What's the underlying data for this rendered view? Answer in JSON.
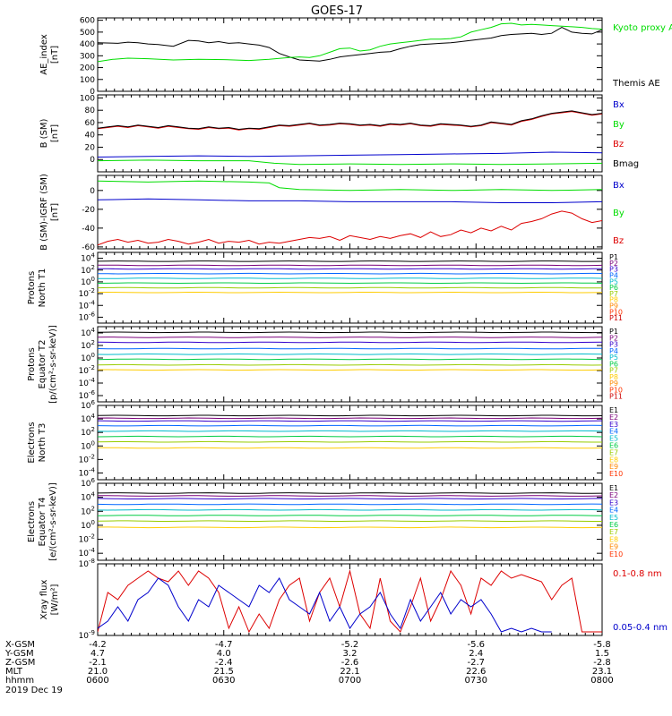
{
  "title": "GOES-17",
  "date_label": "2019 Dec 19",
  "colors": {
    "black": "#000000",
    "green": "#00dd00",
    "red": "#dd0000",
    "blue": "#0000cc",
    "channels": [
      "#000000",
      "#7a007a",
      "#3300cc",
      "#0066ff",
      "#00bbcc",
      "#00cc44",
      "#99cc00",
      "#ffcc00",
      "#ff8800",
      "#ff3300",
      "#cc0000"
    ]
  },
  "chart_data": [
    {
      "type": "line",
      "ylabel": "AE_index [nT]",
      "yticks": [
        "0",
        "100",
        "200",
        "300",
        "400",
        "500",
        "600"
      ],
      "ylim": [
        0,
        620
      ],
      "legend": [
        {
          "label": "Kyoto proxy AE",
          "color": "#00dd00"
        },
        {
          "label": "Themis AE",
          "color": "#000000"
        }
      ],
      "series": [
        {
          "name": "Themis AE",
          "color": "#000000",
          "x": [
            0,
            4,
            6,
            8,
            10,
            12,
            15,
            18,
            20,
            22,
            24,
            26,
            28,
            30,
            32,
            34,
            36,
            38,
            40,
            42,
            44,
            46,
            48,
            50,
            52,
            54,
            56,
            58,
            60,
            62,
            64,
            66,
            68,
            70,
            72,
            74,
            76,
            78,
            80,
            82,
            84,
            86,
            88,
            90,
            92,
            94,
            96,
            98,
            100
          ],
          "y": [
            410,
            405,
            415,
            410,
            400,
            395,
            380,
            430,
            425,
            410,
            420,
            405,
            410,
            400,
            390,
            370,
            320,
            290,
            265,
            260,
            255,
            270,
            290,
            300,
            310,
            320,
            330,
            335,
            360,
            380,
            395,
            400,
            405,
            410,
            420,
            430,
            440,
            450,
            470,
            480,
            485,
            490,
            480,
            490,
            540,
            500,
            490,
            485,
            520
          ]
        },
        {
          "name": "Kyoto proxy AE",
          "color": "#00dd00",
          "x": [
            0,
            3,
            6,
            10,
            15,
            20,
            25,
            30,
            34,
            38,
            40,
            42,
            44,
            46,
            48,
            50,
            52,
            54,
            56,
            58,
            60,
            62,
            64,
            66,
            68,
            70,
            72,
            74,
            76,
            78,
            80,
            82,
            84,
            86,
            88,
            90,
            92,
            94,
            96,
            98,
            100
          ],
          "y": [
            250,
            270,
            280,
            275,
            265,
            270,
            268,
            260,
            270,
            285,
            290,
            285,
            300,
            330,
            360,
            365,
            340,
            350,
            380,
            400,
            410,
            420,
            430,
            440,
            440,
            445,
            460,
            500,
            520,
            540,
            570,
            575,
            560,
            565,
            560,
            555,
            550,
            545,
            540,
            530,
            525
          ]
        }
      ]
    },
    {
      "type": "line",
      "ylabel": "B (SM) [nT]",
      "yticks": [
        "0",
        "20",
        "40",
        "60",
        "80",
        "100"
      ],
      "ylim": [
        -20,
        105
      ],
      "legend": [
        {
          "label": "Bx",
          "color": "#0000cc"
        },
        {
          "label": "By",
          "color": "#00dd00"
        },
        {
          "label": "Bz",
          "color": "#dd0000"
        },
        {
          "label": "Bmag",
          "color": "#000000"
        }
      ],
      "series": [
        {
          "name": "Bz",
          "color": "#dd0000",
          "x": [
            0,
            2,
            4,
            6,
            8,
            10,
            12,
            14,
            16,
            18,
            20,
            22,
            24,
            26,
            28,
            30,
            32,
            34,
            36,
            38,
            40,
            42,
            44,
            46,
            48,
            50,
            52,
            54,
            56,
            58,
            60,
            62,
            64,
            66,
            68,
            70,
            72,
            74,
            76,
            78,
            80,
            82,
            84,
            86,
            88,
            90,
            92,
            94,
            96,
            98,
            100
          ],
          "y": [
            50,
            52,
            54,
            52,
            55,
            53,
            51,
            54,
            52,
            50,
            49,
            52,
            50,
            51,
            48,
            50,
            49,
            52,
            55,
            54,
            56,
            58,
            55,
            56,
            58,
            57,
            55,
            56,
            54,
            57,
            56,
            58,
            55,
            54,
            57,
            56,
            55,
            53,
            55,
            60,
            58,
            56,
            62,
            65,
            70,
            74,
            76,
            78,
            75,
            72,
            74
          ]
        },
        {
          "name": "Bmag",
          "color": "#000000",
          "x": [
            0,
            2,
            4,
            6,
            8,
            10,
            12,
            14,
            16,
            18,
            20,
            22,
            24,
            26,
            28,
            30,
            32,
            34,
            36,
            38,
            40,
            42,
            44,
            46,
            48,
            50,
            52,
            54,
            56,
            58,
            60,
            62,
            64,
            66,
            68,
            70,
            72,
            74,
            76,
            78,
            80,
            82,
            84,
            86,
            88,
            90,
            92,
            94,
            96,
            98,
            100
          ],
          "y": [
            51,
            53,
            55,
            53,
            56,
            54,
            52,
            55,
            53,
            51,
            50,
            53,
            51,
            52,
            49,
            51,
            50,
            53,
            56,
            55,
            57,
            59,
            56,
            57,
            59,
            58,
            56,
            57,
            55,
            58,
            57,
            59,
            56,
            55,
            58,
            57,
            56,
            54,
            56,
            61,
            59,
            57,
            63,
            66,
            71,
            75,
            77,
            79,
            76,
            73,
            75
          ]
        },
        {
          "name": "Bx",
          "color": "#0000cc",
          "x": [
            0,
            10,
            20,
            30,
            40,
            50,
            60,
            70,
            80,
            90,
            100
          ],
          "y": [
            4,
            5,
            6,
            5,
            6,
            7,
            8,
            9,
            10,
            12,
            11
          ]
        },
        {
          "name": "By",
          "color": "#00dd00",
          "x": [
            0,
            10,
            20,
            30,
            35,
            40,
            50,
            60,
            70,
            80,
            90,
            100
          ],
          "y": [
            -2,
            -1,
            -2,
            -2,
            -6,
            -8,
            -7,
            -8,
            -7,
            -8,
            -7,
            -6
          ]
        }
      ]
    },
    {
      "type": "line",
      "ylabel": "B (SM)-IGRF (SM) [nT]",
      "yticks": [
        "-60",
        "-40",
        "-20",
        "0"
      ],
      "ylim": [
        -62,
        16
      ],
      "legend": [
        {
          "label": "Bx",
          "color": "#0000cc"
        },
        {
          "label": "By",
          "color": "#00dd00"
        },
        {
          "label": "Bz",
          "color": "#dd0000"
        }
      ],
      "series": [
        {
          "name": "By",
          "color": "#00dd00",
          "x": [
            0,
            10,
            20,
            30,
            34,
            36,
            40,
            50,
            60,
            70,
            80,
            90,
            100
          ],
          "y": [
            10,
            9,
            10,
            9,
            8,
            3,
            1,
            0,
            1,
            0,
            1,
            0,
            1
          ]
        },
        {
          "name": "Bx",
          "color": "#0000cc",
          "x": [
            0,
            10,
            20,
            30,
            40,
            50,
            60,
            70,
            80,
            90,
            100
          ],
          "y": [
            -10,
            -9,
            -10,
            -11,
            -11,
            -12,
            -12,
            -12,
            -13,
            -13,
            -12
          ]
        },
        {
          "name": "Bz",
          "color": "#dd0000",
          "x": [
            0,
            2,
            4,
            6,
            8,
            10,
            12,
            14,
            16,
            18,
            20,
            22,
            24,
            26,
            28,
            30,
            32,
            34,
            36,
            38,
            40,
            42,
            44,
            46,
            48,
            50,
            52,
            54,
            56,
            58,
            60,
            62,
            64,
            66,
            68,
            70,
            72,
            74,
            76,
            78,
            80,
            82,
            84,
            86,
            88,
            90,
            92,
            94,
            96,
            98,
            100
          ],
          "y": [
            -58,
            -54,
            -52,
            -55,
            -53,
            -56,
            -55,
            -52,
            -54,
            -57,
            -55,
            -52,
            -56,
            -54,
            -55,
            -53,
            -57,
            -55,
            -56,
            -54,
            -52,
            -50,
            -51,
            -49,
            -53,
            -48,
            -50,
            -52,
            -49,
            -51,
            -48,
            -46,
            -50,
            -44,
            -49,
            -47,
            -42,
            -45,
            -40,
            -43,
            -38,
            -42,
            -35,
            -33,
            -30,
            -25,
            -22,
            -24,
            -30,
            -34,
            -32
          ]
        }
      ]
    },
    {
      "type": "line",
      "ylabel": "Protons North T1",
      "yscale": "log",
      "yticks": [
        "10^-6",
        "10^-4",
        "10^-2",
        "10^0",
        "10^2",
        "10^4"
      ],
      "ylim_exp": [
        -7,
        5
      ],
      "legend": [
        "P1",
        "P2",
        "P3",
        "P4",
        "P5",
        "P6",
        "P7",
        "P8",
        "P9",
        "P10",
        "P11"
      ],
      "levels_exp": [
        3.5,
        2.8,
        2.2,
        1.4,
        0.6,
        -0.2,
        -1.0,
        -1.8
      ]
    },
    {
      "type": "line",
      "ylabel": "Protons Equator T2 [p/(cm²-s-sr-keV)]",
      "yscale": "log",
      "yticks": [
        "10^-6",
        "10^-4",
        "10^-2",
        "10^0",
        "10^2",
        "10^4"
      ],
      "ylim_exp": [
        -7,
        5
      ],
      "legend": [
        "P1",
        "P2",
        "P3",
        "P4",
        "P5",
        "P6",
        "P7",
        "P8",
        "P9",
        "P10",
        "P11"
      ],
      "levels_exp": [
        4.1,
        3.3,
        2.5,
        1.5,
        0.6,
        -0.2,
        -1.1,
        -1.9
      ]
    },
    {
      "type": "line",
      "ylabel": "Electrons North T3",
      "yscale": "log",
      "yticks": [
        "10^-4",
        "10^-2",
        "10^0",
        "10^2",
        "10^4",
        "10^6"
      ],
      "ylim_exp": [
        -5,
        6
      ],
      "legend": [
        "E1",
        "E2",
        "E3",
        "E4",
        "E5",
        "E6",
        "E7",
        "E8",
        "E9",
        "E10"
      ],
      "levels_exp": [
        4.5,
        4.1,
        3.7,
        3.0,
        2.2,
        1.4,
        0.6,
        -0.3
      ]
    },
    {
      "type": "line",
      "ylabel": "Electrons Equator T4 [e/(cm²-s-sr-keV)]",
      "yscale": "log",
      "yticks": [
        "10^-4",
        "10^-2",
        "10^0",
        "10^2",
        "10^4",
        "10^6"
      ],
      "ylim_exp": [
        -5,
        6
      ],
      "legend": [
        "E1",
        "E2",
        "E3",
        "E4",
        "E5",
        "E6",
        "E7",
        "E8",
        "E9",
        "E10"
      ],
      "levels_exp": [
        4.6,
        4.2,
        3.8,
        3.0,
        2.2,
        1.4,
        0.6,
        -0.3
      ]
    },
    {
      "type": "line",
      "ylabel": "Xray flux [W/m²]",
      "yscale": "log",
      "yticks": [
        "10^-9",
        "10^-8"
      ],
      "ylim_exp": [
        -9,
        -8
      ],
      "legend": [
        {
          "label": "0.1-0.8 nm",
          "color": "#dd0000"
        },
        {
          "label": "0.05-0.4 nm",
          "color": "#0000cc"
        }
      ],
      "series": [
        {
          "name": "0.1-0.8 nm",
          "color": "#dd0000",
          "x": [
            0,
            2,
            4,
            6,
            8,
            10,
            12,
            14,
            16,
            18,
            20,
            22,
            24,
            26,
            28,
            30,
            32,
            34,
            36,
            38,
            40,
            42,
            44,
            46,
            48,
            50,
            52,
            54,
            56,
            58,
            60,
            62,
            64,
            66,
            68,
            70,
            72,
            74,
            76,
            78,
            80,
            82,
            84,
            86,
            88,
            90,
            92,
            94,
            96,
            98,
            100
          ],
          "y": [
            -8.95,
            -8.4,
            -8.5,
            -8.3,
            -8.2,
            -8.1,
            -8.2,
            -8.25,
            -8.1,
            -8.3,
            -8.1,
            -8.2,
            -8.4,
            -8.9,
            -8.6,
            -8.95,
            -8.7,
            -8.9,
            -8.5,
            -8.3,
            -8.2,
            -8.8,
            -8.4,
            -8.2,
            -8.6,
            -8.1,
            -8.7,
            -8.9,
            -8.2,
            -8.8,
            -8.95,
            -8.6,
            -8.2,
            -8.8,
            -8.5,
            -8.1,
            -8.3,
            -8.7,
            -8.2,
            -8.3,
            -8.1,
            -8.2,
            -8.15,
            -8.2,
            -8.25,
            -8.5,
            -8.3,
            -8.2,
            -8.95,
            -8.95,
            -8.95
          ]
        },
        {
          "name": "0.05-0.4 nm",
          "color": "#0000cc",
          "x": [
            0,
            2,
            4,
            6,
            8,
            10,
            12,
            14,
            16,
            18,
            20,
            22,
            24,
            26,
            28,
            30,
            32,
            34,
            36,
            38,
            40,
            42,
            44,
            46,
            48,
            50,
            52,
            54,
            56,
            58,
            60,
            62,
            64,
            66,
            68,
            70,
            72,
            74,
            76,
            78,
            80,
            82,
            84,
            86,
            88,
            90
          ],
          "y": [
            -8.9,
            -8.8,
            -8.6,
            -8.8,
            -8.5,
            -8.4,
            -8.2,
            -8.3,
            -8.6,
            -8.8,
            -8.5,
            -8.6,
            -8.3,
            -8.4,
            -8.5,
            -8.6,
            -8.3,
            -8.4,
            -8.2,
            -8.5,
            -8.6,
            -8.7,
            -8.4,
            -8.8,
            -8.6,
            -8.9,
            -8.7,
            -8.6,
            -8.4,
            -8.7,
            -8.9,
            -8.5,
            -8.8,
            -8.6,
            -8.4,
            -8.7,
            -8.5,
            -8.6,
            -8.5,
            -8.7,
            -8.95,
            -8.9,
            -8.95,
            -8.9,
            -8.95,
            -8.95
          ]
        }
      ]
    }
  ],
  "xaxis": {
    "row_labels": [
      "X-GSM",
      "Y-GSM",
      "Z-GSM",
      "MLT",
      "hhmm"
    ],
    "columns": [
      [
        "-4.2",
        "4.7",
        "-2.1",
        "21.0",
        "0600"
      ],
      [
        "-4.7",
        "4.0",
        "-2.4",
        "21.5",
        "0630"
      ],
      [
        "-5.2",
        "3.2",
        "-2.6",
        "22.1",
        "0700"
      ],
      [
        "-5.6",
        "2.4",
        "-2.7",
        "22.6",
        "0730"
      ],
      [
        "-5.8",
        "1.5",
        "-2.8",
        "23.1",
        "0800"
      ]
    ]
  }
}
